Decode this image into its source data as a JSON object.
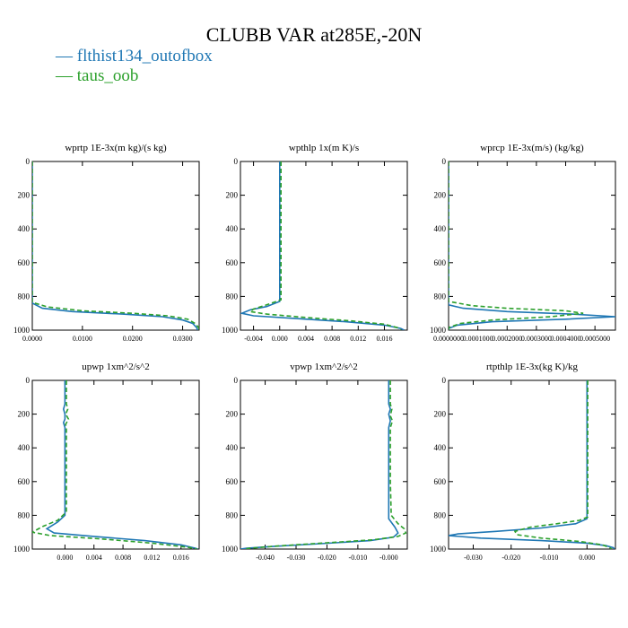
{
  "figure": {
    "title": "CLUBB VAR at285E,-20N",
    "legend": [
      {
        "label": "flthist134_outofbox",
        "color": "#1f77b4",
        "dash": "solid"
      },
      {
        "label": "taus_oob",
        "color": "#2ca02c",
        "dash": "dashed"
      }
    ]
  },
  "chart_data": [
    {
      "type": "line",
      "title": "wprtp  1E-3x(m kg)/(s kg)",
      "xlim": [
        0.0,
        0.0333
      ],
      "ylim": [
        1000,
        0
      ],
      "xticks": [
        0.0,
        0.01,
        0.02,
        0.03
      ],
      "xtick_labels": [
        "0.0000",
        "0.0100",
        "0.0200",
        "0.0300"
      ],
      "yticks": [
        0,
        200,
        400,
        600,
        800,
        1000
      ],
      "ytick_labels": [
        "0",
        "200",
        "400",
        "600",
        "800",
        "1000"
      ],
      "series": [
        {
          "name": "flthist134_outofbox",
          "points": [
            [
              0.0,
              0
            ],
            [
              0.0,
              300
            ],
            [
              0.0,
              600
            ],
            [
              0.0,
              800
            ],
            [
              0.0,
              840
            ],
            [
              0.002,
              870
            ],
            [
              0.008,
              890
            ],
            [
              0.018,
              905
            ],
            [
              0.026,
              920
            ],
            [
              0.03,
              940
            ],
            [
              0.032,
              960
            ],
            [
              0.0328,
              985
            ],
            [
              0.033,
              1000
            ]
          ]
        },
        {
          "name": "taus_oob",
          "points": [
            [
              0.0,
              0
            ],
            [
              0.0,
              300
            ],
            [
              0.0,
              600
            ],
            [
              0.0,
              800
            ],
            [
              0.0,
              835
            ],
            [
              0.003,
              862
            ],
            [
              0.01,
              885
            ],
            [
              0.02,
              900
            ],
            [
              0.027,
              915
            ],
            [
              0.031,
              935
            ],
            [
              0.0325,
              960
            ],
            [
              0.0332,
              985
            ],
            [
              0.0333,
              1000
            ]
          ]
        }
      ]
    },
    {
      "type": "line",
      "title": "wpthlp  1x(m K)/s",
      "xlim": [
        -0.006,
        0.0195
      ],
      "ylim": [
        1000,
        0
      ],
      "xticks": [
        -0.004,
        0.0,
        0.004,
        0.008,
        0.012,
        0.016
      ],
      "xtick_labels": [
        "-0.004",
        "0.000",
        "0.004",
        "0.008",
        "0.012",
        "0.016"
      ],
      "yticks": [
        0,
        200,
        400,
        600,
        800,
        1000
      ],
      "ytick_labels": [
        "0",
        "200",
        "400",
        "600",
        "800",
        "1000"
      ],
      "series": [
        {
          "name": "flthist134_outofbox",
          "points": [
            [
              0.0,
              0
            ],
            [
              0.0,
              400
            ],
            [
              0.0,
              700
            ],
            [
              0.0,
              830
            ],
            [
              -0.002,
              860
            ],
            [
              -0.0045,
              880
            ],
            [
              -0.0058,
              900
            ],
            [
              -0.004,
              915
            ],
            [
              0.002,
              930
            ],
            [
              0.01,
              950
            ],
            [
              0.016,
              970
            ],
            [
              0.0185,
              990
            ],
            [
              0.019,
              1000
            ]
          ]
        },
        {
          "name": "taus_oob",
          "points": [
            [
              0.0002,
              0
            ],
            [
              0.0002,
              400
            ],
            [
              0.0002,
              700
            ],
            [
              0.0002,
              820
            ],
            [
              -0.002,
              850
            ],
            [
              -0.004,
              875
            ],
            [
              -0.0045,
              890
            ],
            [
              -0.002,
              905
            ],
            [
              0.004,
              925
            ],
            [
              0.011,
              945
            ],
            [
              0.016,
              965
            ],
            [
              0.018,
              985
            ],
            [
              0.0185,
              1000
            ]
          ]
        }
      ]
    },
    {
      "type": "line",
      "title": "wprcp  1E-3x(m/s) (kg/kg)",
      "xlim": [
        0.0,
        0.00057
      ],
      "ylim": [
        1000,
        0
      ],
      "xticks": [
        0.0,
        0.0001,
        0.0002,
        0.0003,
        0.0004,
        0.0005
      ],
      "xtick_labels": [
        "0.0000000",
        "0.0001000",
        "0.0002000",
        "0.0003000",
        "0.0004000",
        "0.0005000"
      ],
      "yticks": [
        0,
        200,
        400,
        600,
        800,
        1000
      ],
      "ytick_labels": [
        "0",
        "200",
        "400",
        "600",
        "800",
        "1000"
      ],
      "series": [
        {
          "name": "flthist134_outofbox",
          "points": [
            [
              0.0,
              0
            ],
            [
              0.0,
              600
            ],
            [
              0.0,
              800
            ],
            [
              0.0,
              850
            ],
            [
              5e-05,
              870
            ],
            [
              0.0002,
              890
            ],
            [
              0.00042,
              905
            ],
            [
              0.00057,
              920
            ],
            [
              0.0004,
              935
            ],
            [
              0.00015,
              950
            ],
            [
              3e-05,
              970
            ],
            [
              0.0,
              990
            ],
            [
              0.0,
              1000
            ]
          ]
        },
        {
          "name": "taus_oob",
          "points": [
            [
              0.0,
              0
            ],
            [
              0.0,
              600
            ],
            [
              0.0,
              800
            ],
            [
              0.0,
              830
            ],
            [
              8e-05,
              855
            ],
            [
              0.0002,
              870
            ],
            [
              0.0004,
              885
            ],
            [
              0.00046,
              900
            ],
            [
              0.00035,
              920
            ],
            [
              0.00015,
              940
            ],
            [
              4e-05,
              960
            ],
            [
              0.0,
              985
            ],
            [
              0.0,
              1000
            ]
          ]
        }
      ]
    },
    {
      "type": "line",
      "title": "upwp  1xm^2/s^2",
      "xlim": [
        -0.0045,
        0.0185
      ],
      "ylim": [
        1000,
        0
      ],
      "xticks": [
        0.0,
        0.004,
        0.008,
        0.012,
        0.016
      ],
      "xtick_labels": [
        "0.000",
        "0.004",
        "0.008",
        "0.012",
        "0.016"
      ],
      "yticks": [
        0,
        200,
        400,
        600,
        800,
        1000
      ],
      "ytick_labels": [
        "0",
        "200",
        "400",
        "600",
        "800",
        "1000"
      ],
      "series": [
        {
          "name": "flthist134_outofbox",
          "points": [
            [
              0.0,
              0
            ],
            [
              0.0,
              140
            ],
            [
              -0.0002,
              170
            ],
            [
              0.0,
              200
            ],
            [
              0.0,
              230
            ],
            [
              -0.0002,
              250
            ],
            [
              0.0,
              280
            ],
            [
              0.0,
              600
            ],
            [
              0.0,
              800
            ],
            [
              -0.001,
              840
            ],
            [
              -0.0025,
              880
            ],
            [
              -0.0015,
              905
            ],
            [
              0.004,
              925
            ],
            [
              0.011,
              950
            ],
            [
              0.016,
              975
            ],
            [
              0.018,
              995
            ],
            [
              0.0183,
              1000
            ]
          ]
        },
        {
          "name": "taus_oob",
          "points": [
            [
              0.0002,
              0
            ],
            [
              0.0002,
              140
            ],
            [
              0.0004,
              170
            ],
            [
              0.0001,
              200
            ],
            [
              0.0005,
              230
            ],
            [
              0.0001,
              260
            ],
            [
              0.0002,
              290
            ],
            [
              0.0002,
              600
            ],
            [
              0.0002,
              780
            ],
            [
              -0.001,
              830
            ],
            [
              -0.003,
              865
            ],
            [
              -0.0045,
              900
            ],
            [
              -0.002,
              920
            ],
            [
              0.005,
              940
            ],
            [
              0.012,
              965
            ],
            [
              0.017,
              990
            ],
            [
              0.0182,
              1000
            ]
          ]
        }
      ]
    },
    {
      "type": "line",
      "title": "vpwp  1xm^2/s^2",
      "xlim": [
        -0.048,
        0.006
      ],
      "ylim": [
        1000,
        0
      ],
      "xticks": [
        -0.04,
        -0.03,
        -0.02,
        -0.01,
        0.0
      ],
      "xtick_labels": [
        "-0.040",
        "-0.030",
        "-0.020",
        "-0.010",
        "-0.000"
      ],
      "yticks": [
        0,
        200,
        400,
        600,
        800,
        1000
      ],
      "ytick_labels": [
        "0",
        "200",
        "400",
        "600",
        "800",
        "1000"
      ],
      "series": [
        {
          "name": "flthist134_outofbox",
          "points": [
            [
              0.0,
              0
            ],
            [
              0.0,
              140
            ],
            [
              0.0005,
              170
            ],
            [
              0.0,
              200
            ],
            [
              0.0005,
              240
            ],
            [
              0.0,
              280
            ],
            [
              0.0,
              600
            ],
            [
              0.0,
              820
            ],
            [
              0.002,
              870
            ],
            [
              0.003,
              905
            ],
            [
              0.0015,
              930
            ],
            [
              -0.006,
              950
            ],
            [
              -0.022,
              968
            ],
            [
              -0.038,
              985
            ],
            [
              -0.046,
              995
            ],
            [
              -0.048,
              1000
            ]
          ]
        },
        {
          "name": "taus_oob",
          "points": [
            [
              0.0005,
              0
            ],
            [
              0.0005,
              140
            ],
            [
              0.001,
              170
            ],
            [
              0.0005,
              210
            ],
            [
              0.0012,
              240
            ],
            [
              0.0005,
              280
            ],
            [
              0.0005,
              600
            ],
            [
              0.0008,
              800
            ],
            [
              0.003,
              850
            ],
            [
              0.005,
              880
            ],
            [
              0.0055,
              905
            ],
            [
              0.003,
              925
            ],
            [
              -0.005,
              945
            ],
            [
              -0.02,
              963
            ],
            [
              -0.036,
              982
            ],
            [
              -0.045,
              995
            ],
            [
              -0.047,
              1000
            ]
          ]
        }
      ]
    },
    {
      "type": "line",
      "title": "rtpthlp  1E-3x(kg K)/kg",
      "xlim": [
        -0.0365,
        0.0075
      ],
      "ylim": [
        1000,
        0
      ],
      "xticks": [
        -0.03,
        -0.02,
        -0.01,
        0.0
      ],
      "xtick_labels": [
        "-0.030",
        "-0.020",
        "-0.010",
        "0.000"
      ],
      "yticks": [
        0,
        200,
        400,
        600,
        800,
        1000
      ],
      "ytick_labels": [
        "0",
        "200",
        "400",
        "600",
        "800",
        "1000"
      ],
      "series": [
        {
          "name": "flthist134_outofbox",
          "points": [
            [
              0.0,
              0
            ],
            [
              0.0,
              400
            ],
            [
              0.0,
              700
            ],
            [
              0.0,
              820
            ],
            [
              -0.003,
              850
            ],
            [
              -0.012,
              875
            ],
            [
              -0.024,
              895
            ],
            [
              -0.034,
              910
            ],
            [
              -0.0365,
              920
            ],
            [
              -0.028,
              935
            ],
            [
              -0.012,
              950
            ],
            [
              0.0,
              965
            ],
            [
              0.005,
              980
            ],
            [
              0.007,
              992
            ],
            [
              0.0072,
              1000
            ]
          ]
        },
        {
          "name": "taus_oob",
          "points": [
            [
              0.0002,
              0
            ],
            [
              0.0002,
              400
            ],
            [
              0.0002,
              700
            ],
            [
              0.0002,
              810
            ],
            [
              -0.002,
              830
            ],
            [
              -0.008,
              850
            ],
            [
              -0.015,
              870
            ],
            [
              -0.019,
              895
            ],
            [
              -0.0185,
              915
            ],
            [
              -0.012,
              935
            ],
            [
              -0.002,
              955
            ],
            [
              0.004,
              975
            ],
            [
              0.006,
              992
            ],
            [
              0.0065,
              1000
            ]
          ]
        }
      ]
    }
  ]
}
